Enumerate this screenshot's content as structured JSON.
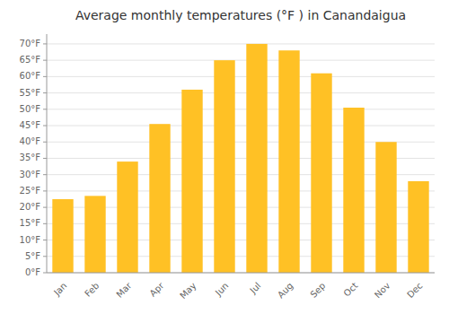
{
  "chart_data": {
    "type": "bar",
    "title": "Average monthly temperatures (°F ) in Canandaigua",
    "categories": [
      "Jan",
      "Feb",
      "Mar",
      "Apr",
      "May",
      "Jun",
      "Jul",
      "Aug",
      "Sep",
      "Oct",
      "Nov",
      "Dec"
    ],
    "values": [
      22.5,
      23.5,
      34,
      45.5,
      56,
      65,
      70,
      68,
      61,
      50.5,
      40,
      28
    ],
    "color": "#FFC125",
    "ylim": [
      0,
      73
    ],
    "yticks": [
      {
        "value": 0,
        "label": "0°F"
      },
      {
        "value": 5,
        "label": "5°F"
      },
      {
        "value": 10,
        "label": "10°F"
      },
      {
        "value": 15,
        "label": "15°F"
      },
      {
        "value": 20,
        "label": "20°F"
      },
      {
        "value": 25,
        "label": "25°F"
      },
      {
        "value": 30,
        "label": "30°F"
      },
      {
        "value": 35,
        "label": "35°F"
      },
      {
        "value": 40,
        "label": "40°F"
      },
      {
        "value": 45,
        "label": "45°F"
      },
      {
        "value": 50,
        "label": "50°F"
      },
      {
        "value": 55,
        "label": "55°F"
      },
      {
        "value": 60,
        "label": "60°F"
      },
      {
        "value": 65,
        "label": "65°F"
      },
      {
        "value": 70,
        "label": "70°F"
      }
    ],
    "grid": true
  }
}
